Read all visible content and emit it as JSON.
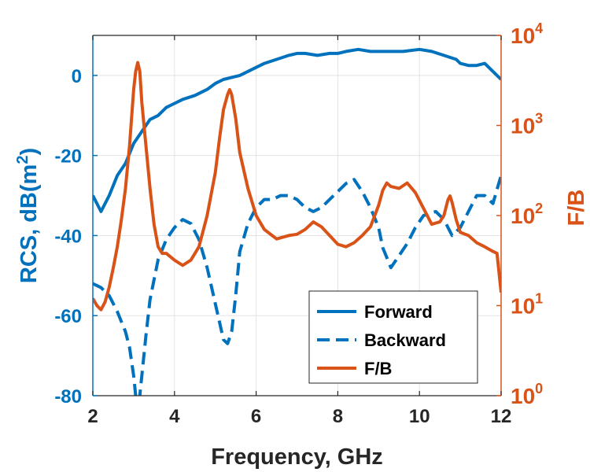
{
  "chart_data": {
    "type": "line",
    "xlabel": "Frequency, GHz",
    "ylabel_left": {
      "main": "RCS, dB(m",
      "sup": "2",
      "close": ")"
    },
    "ylabel_right": "F/B",
    "xlim": [
      2,
      12
    ],
    "ylim_left": [
      -80,
      10
    ],
    "ylim_right": [
      1,
      10000
    ],
    "right_scale": "log",
    "grid": true,
    "legend_position": "bottom-right",
    "x_ticks": [
      {
        "value": 2,
        "label": "2"
      },
      {
        "value": 4,
        "label": "4"
      },
      {
        "value": 6,
        "label": "6"
      },
      {
        "value": 8,
        "label": "8"
      },
      {
        "value": 10,
        "label": "10"
      },
      {
        "value": 12,
        "label": "12"
      }
    ],
    "y_ticks_left": [
      {
        "value": 0,
        "label": "0"
      },
      {
        "value": -20,
        "label": "-20"
      },
      {
        "value": -40,
        "label": "-40"
      },
      {
        "value": -60,
        "label": "-60"
      },
      {
        "value": -80,
        "label": "-80"
      }
    ],
    "y_ticks_right": [
      {
        "value": 1,
        "base": "10",
        "exp": "0"
      },
      {
        "value": 10,
        "base": "10",
        "exp": "1"
      },
      {
        "value": 100,
        "base": "10",
        "exp": "2"
      },
      {
        "value": 1000,
        "base": "10",
        "exp": "3"
      },
      {
        "value": 10000,
        "base": "10",
        "exp": "4"
      }
    ],
    "series": [
      {
        "name": "Forward",
        "axis": "left",
        "style": "solid",
        "color": "#0072BD",
        "x": [
          2.0,
          2.1,
          2.2,
          2.4,
          2.6,
          2.8,
          3.0,
          3.2,
          3.4,
          3.6,
          3.8,
          4.0,
          4.2,
          4.5,
          4.8,
          5.0,
          5.2,
          5.4,
          5.6,
          5.8,
          6.0,
          6.2,
          6.5,
          6.8,
          7.0,
          7.2,
          7.5,
          7.8,
          8.0,
          8.2,
          8.5,
          8.8,
          9.0,
          9.3,
          9.6,
          10.0,
          10.3,
          10.6,
          10.9,
          11.0,
          11.2,
          11.4,
          11.6,
          11.8,
          12.0
        ],
        "y": [
          -30,
          -32,
          -34,
          -30,
          -25,
          -22,
          -17,
          -14,
          -11,
          -10,
          -8,
          -7,
          -6,
          -5,
          -3.5,
          -2,
          -1,
          -0.5,
          0,
          1,
          2,
          3,
          4,
          5,
          5.5,
          5.5,
          5,
          5.5,
          5.5,
          6,
          6.5,
          6,
          6,
          6,
          6,
          6.5,
          6,
          5,
          4,
          3,
          2.5,
          2.5,
          3,
          1,
          -1
        ]
      },
      {
        "name": "Backward",
        "axis": "left",
        "style": "dashed",
        "color": "#0072BD",
        "x": [
          2.0,
          2.2,
          2.4,
          2.6,
          2.8,
          2.9,
          3.0,
          3.05,
          3.1,
          3.15,
          3.2,
          3.3,
          3.4,
          3.6,
          3.8,
          4.0,
          4.2,
          4.4,
          4.6,
          4.8,
          5.0,
          5.2,
          5.3,
          5.4,
          5.5,
          5.6,
          5.8,
          6.0,
          6.2,
          6.4,
          6.6,
          6.8,
          7.0,
          7.2,
          7.4,
          7.6,
          7.8,
          8.0,
          8.2,
          8.4,
          8.6,
          8.8,
          9.0,
          9.1,
          9.3,
          9.5,
          9.7,
          9.9,
          10.1,
          10.4,
          10.6,
          10.8,
          11.0,
          11.2,
          11.4,
          11.6,
          11.8,
          12.0
        ],
        "y": [
          -52,
          -53,
          -55,
          -59,
          -64,
          -68,
          -75,
          -80,
          -84,
          -80,
          -75,
          -65,
          -56,
          -46,
          -41,
          -38,
          -36,
          -37,
          -41,
          -48,
          -57,
          -66,
          -67,
          -64,
          -55,
          -44,
          -37,
          -33,
          -31,
          -31,
          -30,
          -30,
          -31,
          -33,
          -34,
          -33,
          -31,
          -29,
          -27,
          -26,
          -29,
          -33,
          -38,
          -43,
          -48,
          -45,
          -42,
          -38,
          -35,
          -34,
          -36,
          -40,
          -38,
          -34,
          -30,
          -30,
          -32,
          -25
        ]
      },
      {
        "name": "F/B",
        "axis": "right",
        "style": "solid",
        "color": "#D95319",
        "x": [
          2.0,
          2.1,
          2.2,
          2.3,
          2.4,
          2.5,
          2.6,
          2.7,
          2.8,
          2.9,
          3.0,
          3.05,
          3.1,
          3.15,
          3.2,
          3.3,
          3.4,
          3.5,
          3.6,
          3.7,
          3.8,
          4.0,
          4.2,
          4.4,
          4.6,
          4.8,
          5.0,
          5.1,
          5.2,
          5.3,
          5.35,
          5.4,
          5.5,
          5.6,
          5.8,
          6.0,
          6.2,
          6.5,
          6.8,
          7.0,
          7.2,
          7.4,
          7.6,
          7.8,
          8.0,
          8.2,
          8.4,
          8.6,
          8.8,
          9.0,
          9.1,
          9.2,
          9.3,
          9.5,
          9.7,
          9.9,
          10.1,
          10.3,
          10.5,
          10.6,
          10.7,
          10.75,
          10.8,
          10.9,
          11.0,
          11.2,
          11.4,
          11.6,
          11.8,
          11.9,
          12.0
        ],
        "y": [
          12,
          10,
          9,
          11,
          16,
          26,
          45,
          90,
          200,
          600,
          2500,
          4000,
          5000,
          4000,
          1800,
          600,
          200,
          80,
          45,
          38,
          38,
          32,
          28,
          32,
          45,
          100,
          300,
          700,
          1500,
          2200,
          2500,
          2200,
          1200,
          500,
          200,
          100,
          70,
          55,
          60,
          62,
          70,
          85,
          75,
          60,
          48,
          45,
          50,
          60,
          75,
          130,
          190,
          230,
          210,
          200,
          230,
          180,
          120,
          80,
          85,
          100,
          150,
          165,
          140,
          90,
          65,
          60,
          50,
          45,
          40,
          38,
          14
        ]
      }
    ]
  }
}
